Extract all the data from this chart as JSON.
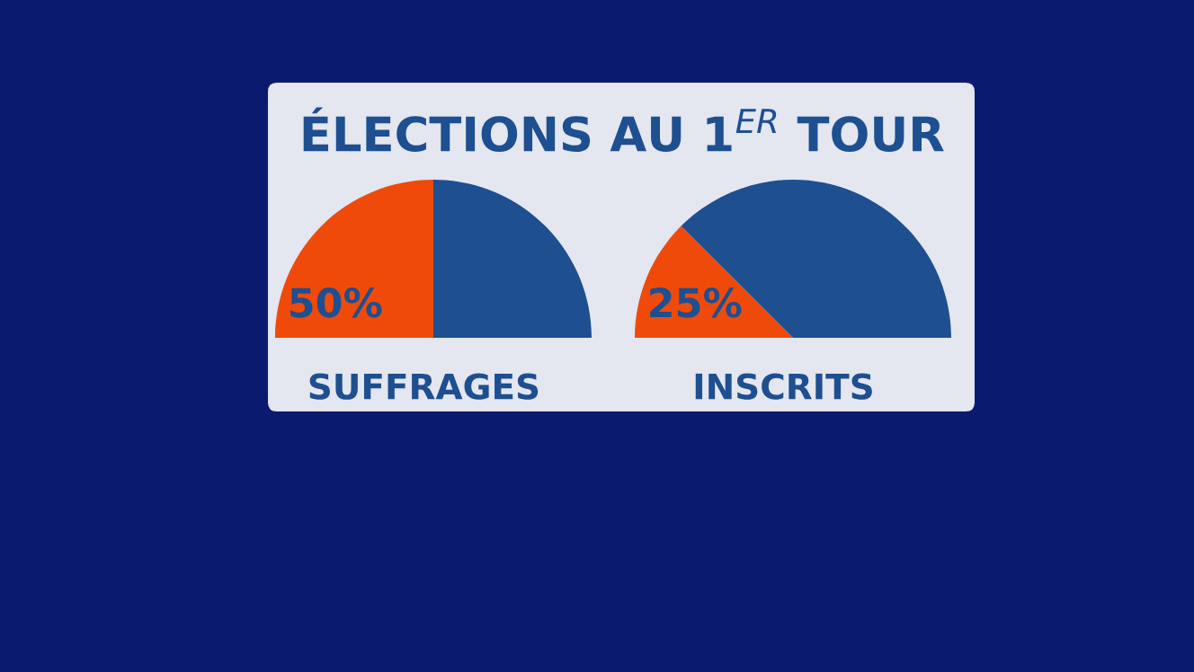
{
  "chart_data": [
    {
      "type": "pie",
      "title": "ÉLECTIONS AU 1$^{ER}$ TOUR",
      "xlabel": "SUFFRAGES",
      "categories": [
        null,
        null
      ],
      "values": [
        50,
        50
      ],
      "colors": [
        "#f04a0a",
        "#1d4f91"
      ],
      "value_labels": [
        "50%",
        null
      ]
    },
    {
      "type": "pie",
      "xlabel": "INSCRITS",
      "categories": [
        null,
        null
      ],
      "values": [
        25,
        75
      ],
      "colors": [
        "#f04a0a",
        "#1d4f91"
      ],
      "value_labels": [
        "25%",
        null
      ]
    }
  ]
}
